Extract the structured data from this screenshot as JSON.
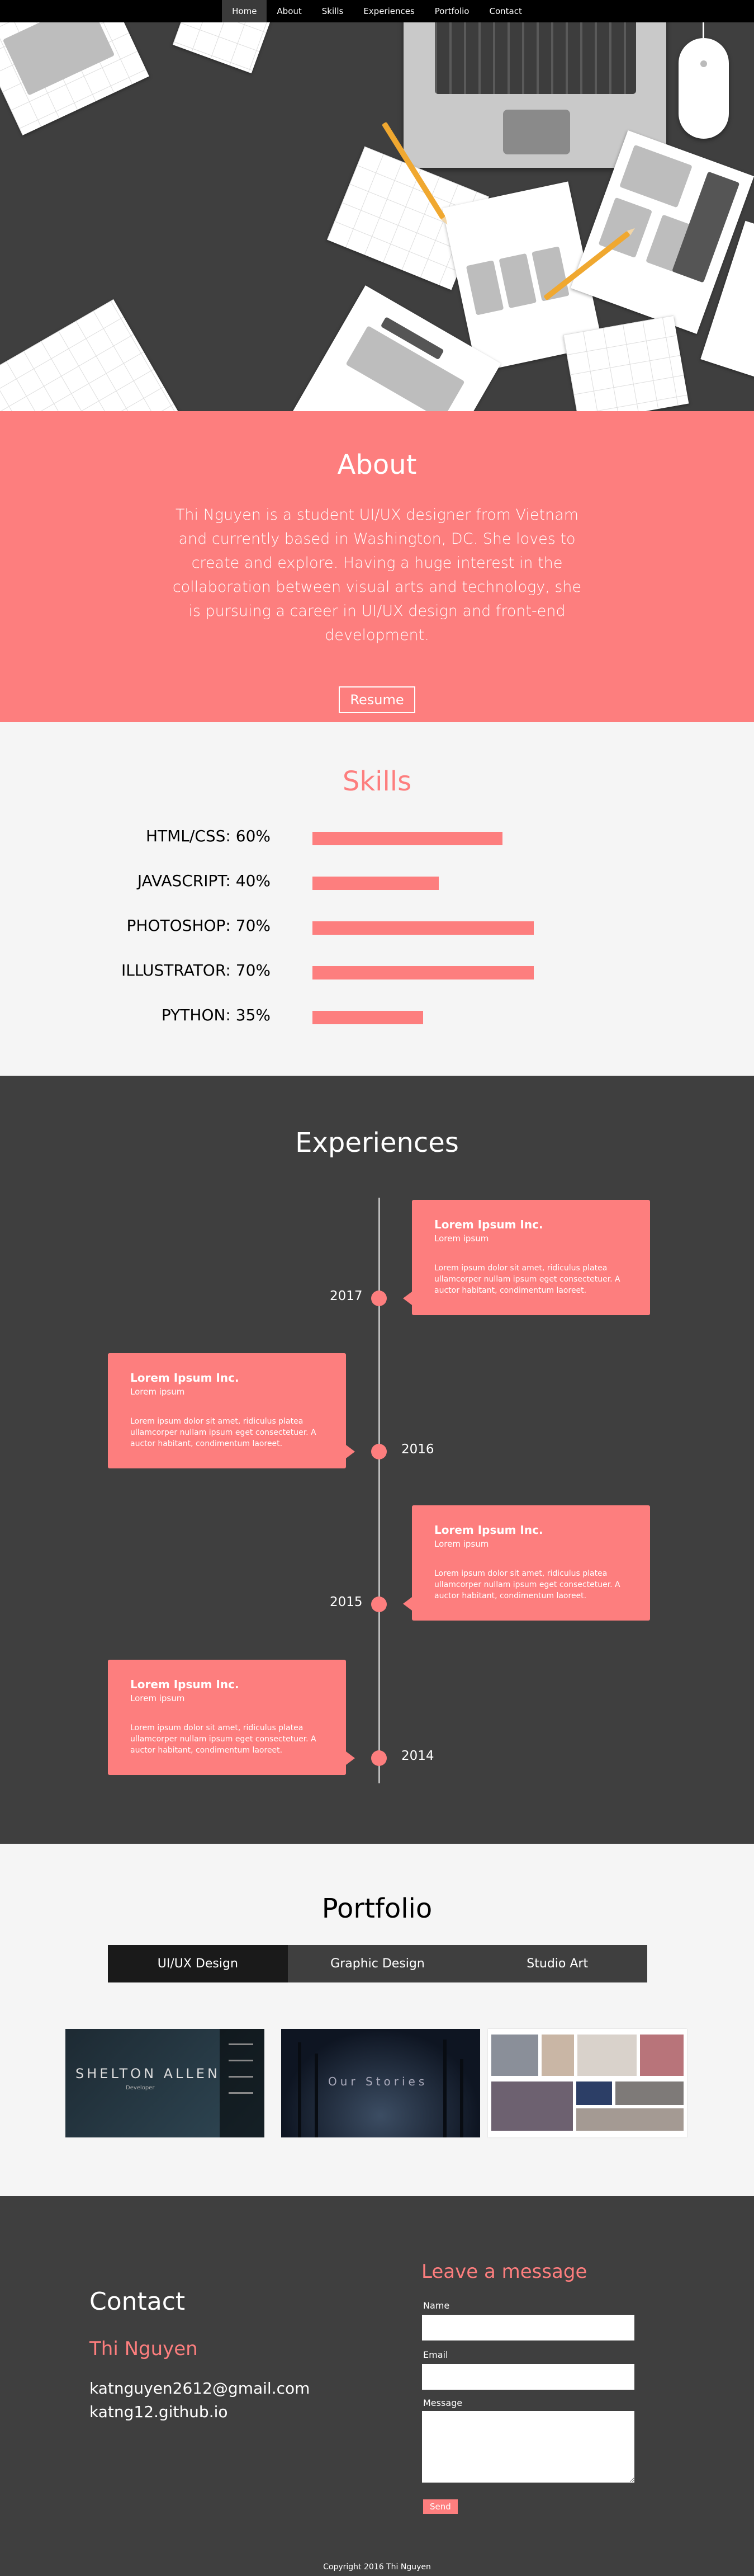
{
  "nav": {
    "items": [
      "Home",
      "About",
      "Skills",
      "Experiences",
      "Portfolio",
      "Contact"
    ],
    "active": "Home"
  },
  "about": {
    "title": "About",
    "text": "Thi Nguyen is a student UI/UX designer from Vietnam and currently based in Washington, DC. She loves to create and explore. Having a huge interest in the collaboration between visual arts and technology, she is pursuing a career in UI/UX design and front-end development.",
    "resume_label": "Resume"
  },
  "skills": {
    "title": "Skills",
    "items": [
      {
        "label": "HTML/CSS: 60%",
        "percent": 60
      },
      {
        "label": "JAVASCRIPT: 40%",
        "percent": 40
      },
      {
        "label": "PHOTOSHOP: 70%",
        "percent": 70
      },
      {
        "label": "ILLUSTRATOR: 70%",
        "percent": 70
      },
      {
        "label": "PYTHON: 35%",
        "percent": 35
      }
    ]
  },
  "experiences": {
    "title": "Experiences",
    "items": [
      {
        "year": "2017",
        "company": "Lorem Ipsum  Inc.",
        "subtitle": "Lorem ipsum",
        "body": "Lorem ipsum dolor sit amet, ridiculus platea ullamcorper nullam ipsum eget consectetuer. A auctor habitant, condimentum laoreet."
      },
      {
        "year": "2016",
        "company": "Lorem Ipsum  Inc.",
        "subtitle": "Lorem ipsum",
        "body": "Lorem ipsum dolor sit amet, ridiculus platea ullamcorper nullam ipsum eget consectetuer. A auctor habitant, condimentum laoreet."
      },
      {
        "year": "2015",
        "company": "Lorem Ipsum  Inc.",
        "subtitle": "Lorem ipsum",
        "body": "Lorem ipsum dolor sit amet, ridiculus platea ullamcorper nullam ipsum eget consectetuer. A auctor habitant, condimentum laoreet."
      },
      {
        "year": "2014",
        "company": "Lorem Ipsum  Inc.",
        "subtitle": "Lorem ipsum",
        "body": "Lorem ipsum dolor sit amet, ridiculus platea ullamcorper nullam ipsum eget consectetuer. A auctor habitant, condimentum laoreet."
      }
    ]
  },
  "portfolio": {
    "title": "Portfolio",
    "tabs": [
      "UI/UX Design",
      "Graphic Design",
      "Studio Art"
    ],
    "active_tab": "UI/UX Design",
    "thumb1_title": "SHELTON ALLEN",
    "thumb1_sub": "Developer",
    "thumb2_title": "Our Stories"
  },
  "contact": {
    "title": "Contact",
    "name": "Thi Nguyen",
    "email": "katnguyen2612@gmail.com",
    "site": "katng12.github.io",
    "form_title": "Leave a message",
    "name_label": "Name",
    "email_label": "Email",
    "message_label": "Message",
    "send_label": "Send"
  },
  "footer": {
    "copyright": "Copyright 2016 Thi Nguyen"
  },
  "colors": {
    "accent": "#fd7e7e",
    "dark": "#3f3f3f",
    "light": "#f5f5f5"
  }
}
